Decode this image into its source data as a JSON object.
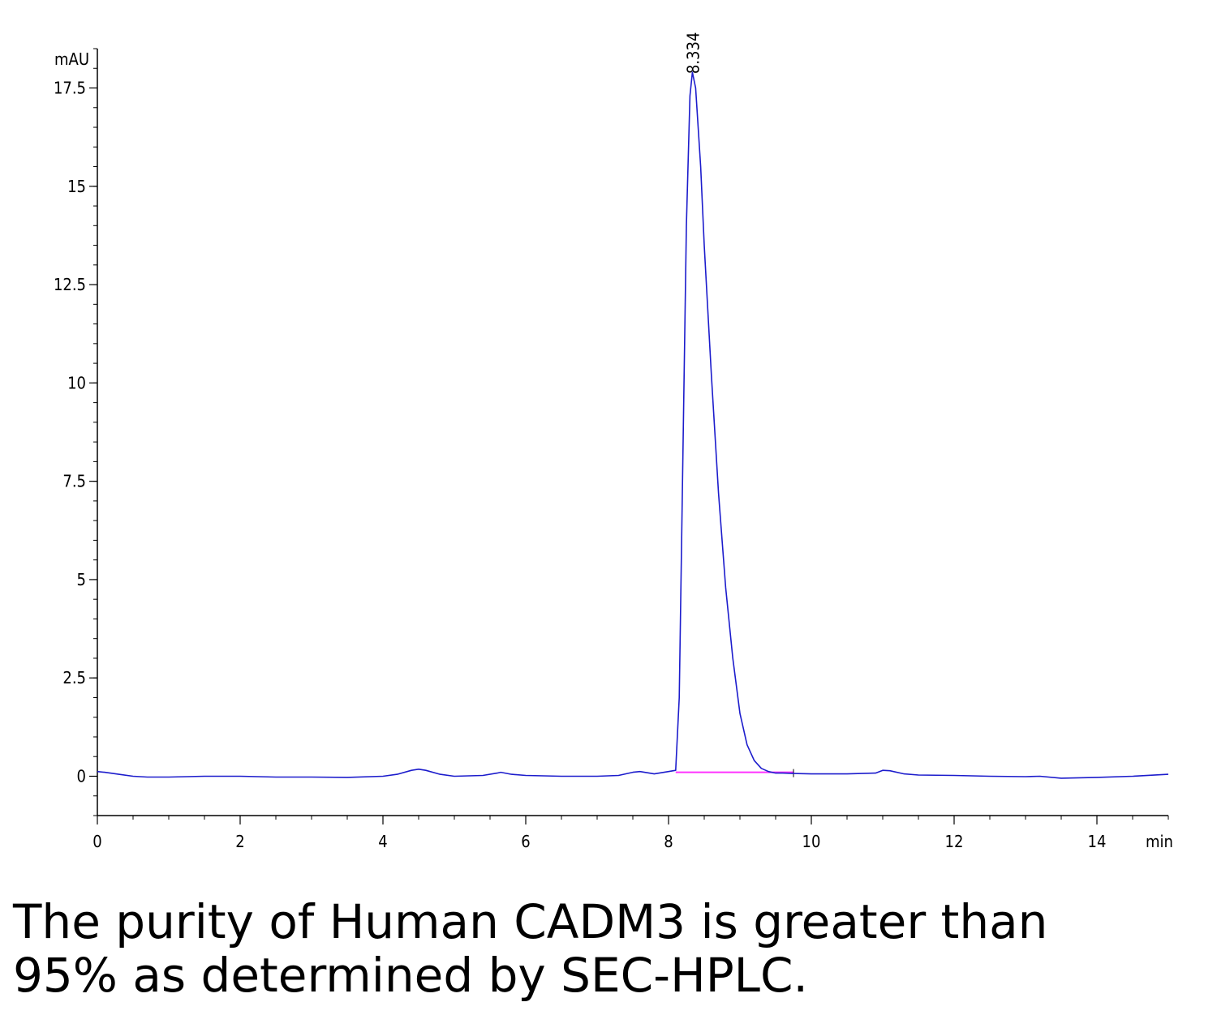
{
  "chart_data": {
    "type": "line",
    "ylabel": "mAU",
    "xlabel": "min",
    "xlim": [
      0,
      15
    ],
    "ylim": [
      -1,
      18.5
    ],
    "xticks": [
      0,
      2,
      4,
      6,
      8,
      10,
      12,
      14
    ],
    "xtick_labels": [
      "0",
      "2",
      "4",
      "6",
      "8",
      "10",
      "12",
      "14"
    ],
    "yticks": [
      0,
      2.5,
      5,
      7.5,
      10,
      12.5,
      15,
      17.5
    ],
    "ytick_labels": [
      "0",
      "2.5",
      "5",
      "7.5",
      "10",
      "12.5",
      "15",
      "17.5"
    ],
    "peak_label": "8.334",
    "peak": {
      "x": 8.334,
      "y": 17.9
    },
    "baseline_integration": {
      "x": [
        8.1,
        9.75
      ],
      "y": [
        0.1,
        0.1
      ]
    },
    "series": [
      {
        "color": "#1c1ccc",
        "x": [
          0,
          0.1,
          0.3,
          0.5,
          0.7,
          1.0,
          1.5,
          2.0,
          2.5,
          3.0,
          3.5,
          4.0,
          4.2,
          4.4,
          4.5,
          4.6,
          4.8,
          5.0,
          5.4,
          5.6,
          5.65,
          5.8,
          6.0,
          6.5,
          7.0,
          7.3,
          7.5,
          7.6,
          7.8,
          8.0,
          8.1,
          8.15,
          8.2,
          8.25,
          8.3,
          8.334,
          8.38,
          8.45,
          8.5,
          8.6,
          8.7,
          8.8,
          8.9,
          9.0,
          9.1,
          9.2,
          9.3,
          9.4,
          9.5,
          9.6,
          9.75,
          10.0,
          10.5,
          10.9,
          11.0,
          11.1,
          11.3,
          11.5,
          12.0,
          12.5,
          13.0,
          13.2,
          13.5,
          14.0,
          14.5,
          15.0
        ],
        "y": [
          0.12,
          0.1,
          0.05,
          0.0,
          -0.02,
          -0.02,
          0.0,
          0.0,
          -0.02,
          -0.02,
          -0.03,
          0.0,
          0.05,
          0.15,
          0.18,
          0.15,
          0.05,
          0.0,
          0.02,
          0.08,
          0.1,
          0.05,
          0.02,
          0.0,
          0.0,
          0.02,
          0.1,
          0.12,
          0.06,
          0.12,
          0.15,
          2.0,
          8.0,
          14.0,
          17.3,
          17.9,
          17.5,
          15.5,
          13.5,
          10.2,
          7.2,
          4.8,
          3.0,
          1.6,
          0.8,
          0.4,
          0.2,
          0.12,
          0.08,
          0.08,
          0.07,
          0.06,
          0.06,
          0.08,
          0.15,
          0.14,
          0.06,
          0.03,
          0.02,
          0.0,
          -0.01,
          0.0,
          -0.05,
          -0.03,
          0.0,
          0.05
        ]
      }
    ]
  },
  "caption": {
    "line1": "The purity of Human CADM3 is greater than",
    "line2": "95% as determined by SEC-HPLC."
  }
}
